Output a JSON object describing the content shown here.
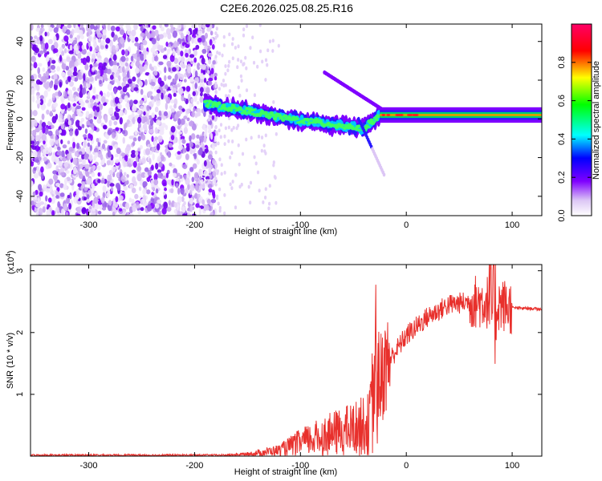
{
  "figure": {
    "title": "C2E6.2026.025.08.25.R16"
  },
  "chart_data": [
    {
      "type": "heatmap",
      "xlabel": "Height of straight line (km)",
      "ylabel": "Frequency (Hz)",
      "xlim": [
        -355,
        128
      ],
      "ylim": [
        -50,
        49
      ],
      "xticks": [
        -300,
        -200,
        -100,
        0,
        100
      ],
      "yticks": [
        -40,
        -20,
        0,
        20,
        40
      ],
      "colorbar": {
        "label": "Normalized spectral amplitude",
        "range": [
          0.0,
          1.0
        ],
        "ticks": [
          "0.0",
          "0.2",
          "0.4",
          "0.6",
          "0.8"
        ],
        "colors": [
          "#ffffff",
          "#dcc6f5",
          "#7f00ff",
          "#0000ff",
          "#00ffff",
          "#00ff00",
          "#ffff00",
          "#ff0000",
          "#ff0066"
        ]
      },
      "features": {
        "noise_region_km": [
          -355,
          -180
        ],
        "signal_trace_start_km": -190,
        "signal_trace_freq_hz": [
          8,
          0,
          -5,
          2,
          2
        ],
        "steady_tone_start_km": -25,
        "steady_tone_freq_hz": 2
      }
    },
    {
      "type": "line",
      "xlabel": "Height of straight line (km)",
      "ylabel": "SNR (10 * v/v)",
      "multiplier_label": "(x10",
      "multiplier_exp": "4",
      "multiplier_close": ")",
      "xlim": [
        -355,
        128
      ],
      "ylim": [
        0,
        3.1
      ],
      "xticks": [
        -300,
        -200,
        -100,
        0,
        100
      ],
      "yticks": [
        1,
        2,
        3
      ],
      "series_color": "#e8302c",
      "envelope": {
        "x": [
          -355,
          -170,
          -150,
          -120,
          -100,
          -70,
          -50,
          -35,
          -30,
          -25,
          -20,
          -10,
          0,
          20,
          40,
          60,
          70,
          80,
          90,
          100,
          128
        ],
        "y": [
          0.02,
          0.02,
          0.04,
          0.12,
          0.28,
          0.45,
          0.55,
          0.65,
          1.5,
          1.2,
          1.45,
          1.7,
          1.95,
          2.25,
          2.45,
          2.5,
          2.5,
          2.5,
          2.45,
          2.4,
          2.38
        ]
      }
    }
  ]
}
